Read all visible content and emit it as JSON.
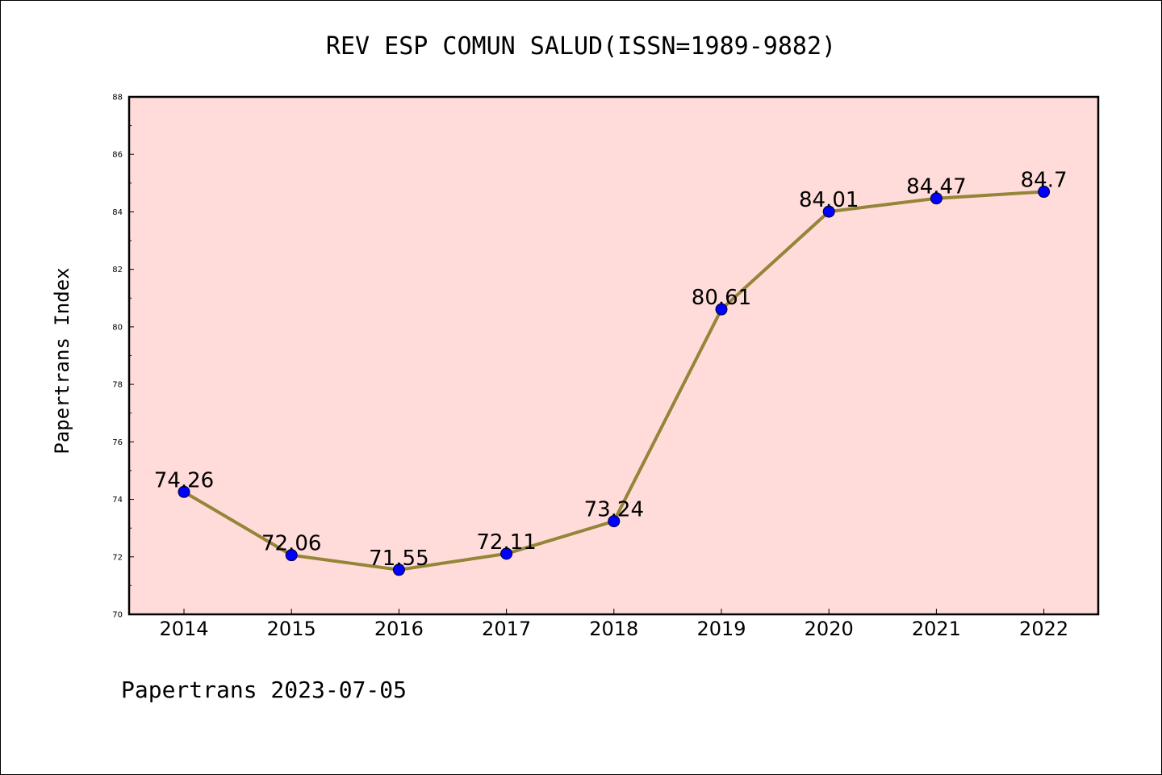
{
  "chart_data": {
    "type": "line",
    "title": "REV ESP COMUN SALUD(ISSN=1989-9882)",
    "ylabel": "Papertrans Index",
    "xlabel": "",
    "footer": "Papertrans 2023-07-05",
    "categories": [
      "2014",
      "2015",
      "2016",
      "2017",
      "2018",
      "2019",
      "2020",
      "2021",
      "2022"
    ],
    "values": [
      74.26,
      72.06,
      71.55,
      72.11,
      73.24,
      80.61,
      84.01,
      84.47,
      84.7
    ],
    "data_labels": [
      "74.26",
      "72.06",
      "71.55",
      "72.11",
      "73.24",
      "80.61",
      "84.01",
      "84.47",
      "84.7"
    ],
    "ylim": [
      70,
      88
    ],
    "yticks": [
      70,
      72,
      74,
      76,
      78,
      80,
      82,
      84,
      86,
      88
    ],
    "ytick_labels": [
      "70",
      "72",
      "74",
      "76",
      "78",
      "80",
      "82",
      "84",
      "86",
      "88"
    ],
    "grid": false,
    "colors": {
      "plot_background": "#ffdcd9",
      "line": "#948538",
      "marker": "#0000ff"
    }
  }
}
